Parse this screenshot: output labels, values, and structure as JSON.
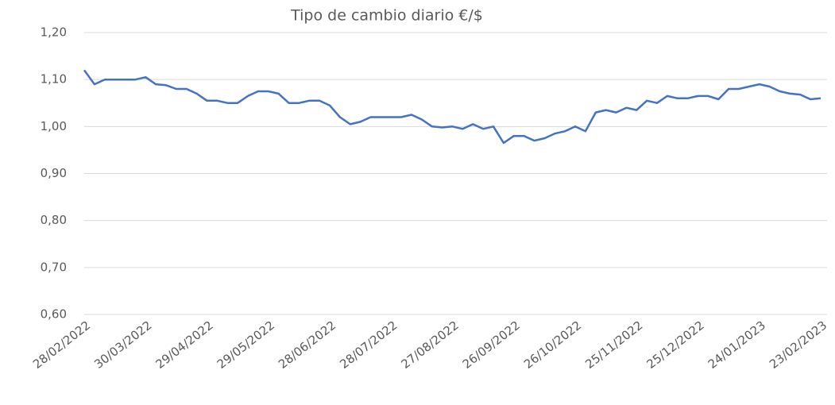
{
  "chart_data": {
    "type": "line",
    "title": "Tipo de cambio diario €/$",
    "categories": [
      "28/02/2022",
      null,
      null,
      null,
      null,
      null,
      "30/03/2022",
      null,
      null,
      null,
      null,
      null,
      "29/04/2022",
      null,
      null,
      null,
      null,
      null,
      "29/05/2022",
      null,
      null,
      null,
      null,
      null,
      "28/06/2022",
      null,
      null,
      null,
      null,
      null,
      "28/07/2022",
      null,
      null,
      null,
      null,
      null,
      "27/08/2022",
      null,
      null,
      null,
      null,
      null,
      "26/09/2022",
      null,
      null,
      null,
      null,
      null,
      "26/10/2022",
      null,
      null,
      null,
      null,
      null,
      "25/11/2022",
      null,
      null,
      null,
      null,
      null,
      "25/12/2022",
      null,
      null,
      null,
      null,
      null,
      "24/01/2023",
      null,
      null,
      null,
      null,
      null,
      "23/02/2023"
    ],
    "series": [
      {
        "name": "€/$",
        "color": "#4472c4",
        "values": [
          1.12,
          1.09,
          1.1,
          1.1,
          1.1,
          1.1,
          1.105,
          1.09,
          1.088,
          1.08,
          1.08,
          1.07,
          1.055,
          1.055,
          1.05,
          1.05,
          1.065,
          1.075,
          1.075,
          1.07,
          1.05,
          1.05,
          1.055,
          1.055,
          1.045,
          1.02,
          1.005,
          1.01,
          1.02,
          1.02,
          1.02,
          1.02,
          1.025,
          1.015,
          1.0,
          0.998,
          1.0,
          0.995,
          1.005,
          0.995,
          1.0,
          0.965,
          0.98,
          0.98,
          0.97,
          0.975,
          0.985,
          0.99,
          1.0,
          0.99,
          1.03,
          1.035,
          1.03,
          1.04,
          1.035,
          1.055,
          1.05,
          1.065,
          1.06,
          1.06,
          1.065,
          1.065,
          1.058,
          1.08,
          1.08,
          1.085,
          1.09,
          1.085,
          1.075,
          1.07,
          1.068,
          1.058,
          1.06
        ]
      }
    ],
    "ylim": [
      0.6,
      1.2
    ],
    "yticks": [
      {
        "value": 0.6,
        "label": "0,60"
      },
      {
        "value": 0.7,
        "label": "0,70"
      },
      {
        "value": 0.8,
        "label": "0,80"
      },
      {
        "value": 0.9,
        "label": "0,90"
      },
      {
        "value": 1.0,
        "label": "1,00"
      },
      {
        "value": 1.1,
        "label": "1,10"
      },
      {
        "value": 1.2,
        "label": "1,20"
      }
    ],
    "grid": true
  }
}
